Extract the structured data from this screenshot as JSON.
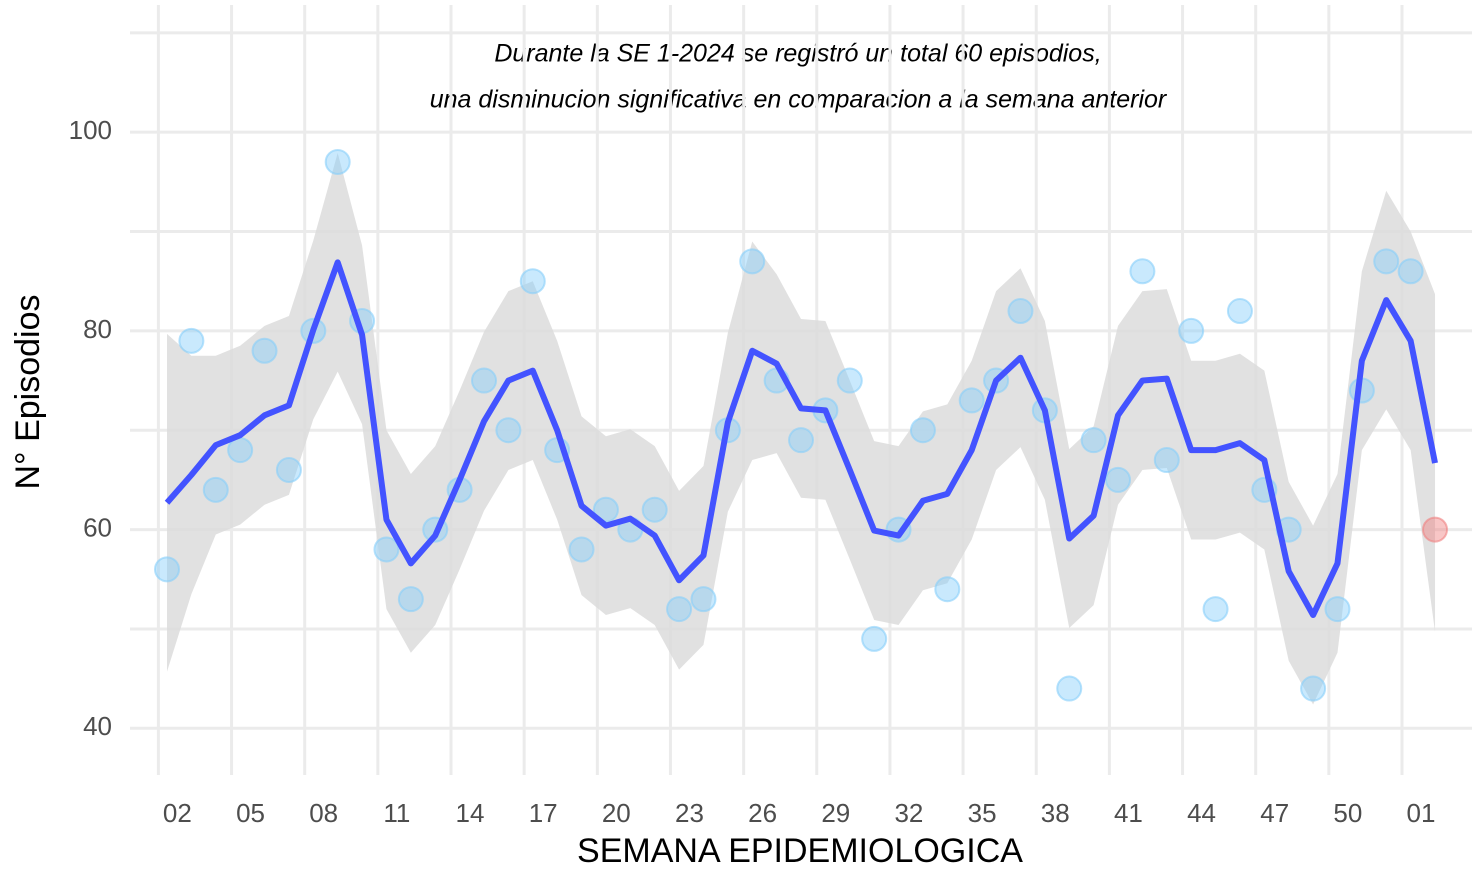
{
  "chart_data": {
    "type": "scatter",
    "annotation": [
      "Durante la SE 1-2024 se registró un total  60 episodios,",
      "una disminucion significativa en comparacion a la semana anterior"
    ],
    "x_label": "SEMANA EPIDEMIOLOGICA",
    "y_label": "N° Episodios",
    "categories": [
      null,
      "02",
      null,
      null,
      "05",
      null,
      null,
      "08",
      null,
      null,
      "11",
      null,
      null,
      "14",
      null,
      null,
      "17",
      null,
      null,
      "20",
      null,
      null,
      "23",
      null,
      null,
      "26",
      null,
      null,
      "29",
      null,
      null,
      "32",
      null,
      null,
      "35",
      null,
      null,
      "38",
      null,
      null,
      "41",
      null,
      null,
      "44",
      null,
      null,
      "47",
      null,
      null,
      "50",
      null,
      null,
      "01"
    ],
    "values": [
      56,
      79,
      64,
      68,
      78,
      66,
      80,
      97,
      81,
      58,
      53,
      60,
      64,
      75,
      70,
      85,
      68,
      58,
      62,
      60,
      62,
      52,
      53,
      70,
      87,
      75,
      69,
      72,
      75,
      49,
      60,
      70,
      54,
      73,
      75,
      82,
      72,
      44,
      69,
      65,
      86,
      67,
      80,
      52,
      82,
      64,
      60,
      44,
      52,
      74,
      87,
      86,
      60
    ],
    "color": "#87cefa",
    "highlight_index": 52,
    "highlight_color": "#f08080",
    "smooth": {
      "color": "#4353ff",
      "band_color": "#dcdcdc",
      "values": [
        62.7,
        65.5,
        68.5,
        69.5,
        71.5,
        72.5,
        80.1,
        86.9,
        79.6,
        61,
        56.6,
        59.4,
        65,
        70.9,
        75,
        76,
        70,
        62.4,
        60.4,
        61.1,
        59.4,
        54.9,
        57.4,
        70.8,
        78,
        76.7,
        72.2,
        72,
        66,
        59.9,
        59.4,
        62.9,
        63.6,
        68,
        75,
        77.3,
        72,
        59.1,
        61.4,
        71.5,
        75,
        75.2,
        68,
        68,
        68.7,
        67,
        55.8,
        51.4,
        56.6,
        77,
        83.1,
        79,
        66.7
      ],
      "upper": [
        79.7,
        77.5,
        77.5,
        78.5,
        80.5,
        81.5,
        89.1,
        97.9,
        88.6,
        70,
        65.6,
        68.4,
        74,
        79.9,
        84,
        85,
        79,
        71.4,
        69.4,
        70.1,
        68.4,
        63.9,
        66.4,
        79.8,
        89,
        85.7,
        81.2,
        81,
        75,
        68.9,
        68.4,
        71.9,
        72.6,
        77,
        84,
        86.3,
        81,
        68.1,
        70.4,
        80.5,
        84,
        84.2,
        77,
        77,
        77.7,
        76,
        64.8,
        60.4,
        65.6,
        86,
        94.1,
        90,
        83.7
      ],
      "lower": [
        45.7,
        53.5,
        59.5,
        60.5,
        62.5,
        63.5,
        71.1,
        75.9,
        70.6,
        52,
        47.6,
        50.4,
        56,
        61.9,
        66,
        67,
        61,
        53.4,
        51.4,
        52.1,
        50.4,
        45.9,
        48.4,
        61.8,
        67,
        67.7,
        63.2,
        63,
        57,
        50.9,
        50.4,
        53.9,
        54.6,
        59,
        66,
        68.3,
        63,
        50.1,
        52.4,
        62.5,
        66,
        66.2,
        59,
        59,
        59.7,
        58,
        46.8,
        42.4,
        47.6,
        68,
        72.1,
        68,
        49.7
      ]
    },
    "ylim": [
      35.3,
      112.8
    ],
    "yticks": [
      40,
      60,
      80,
      100
    ],
    "minor_yticks": [
      50,
      70,
      90,
      110
    ],
    "grid": true
  }
}
